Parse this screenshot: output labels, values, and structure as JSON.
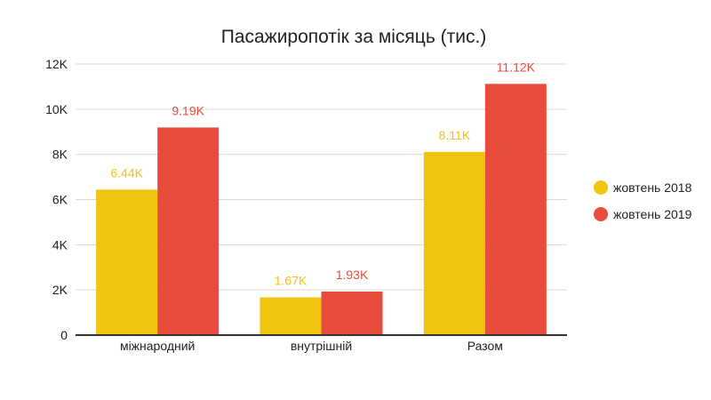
{
  "chart_data": {
    "type": "bar",
    "title": "Пасажиропотік за місяць (тис.)",
    "xlabel": "",
    "ylabel": "",
    "ylim": [
      0,
      12000
    ],
    "yticks": [
      0,
      2000,
      4000,
      6000,
      8000,
      10000,
      12000
    ],
    "ytick_labels": [
      "0",
      "2K",
      "4K",
      "6K",
      "8K",
      "10K",
      "12K"
    ],
    "categories": [
      "міжнародний",
      "внутрішній",
      "Разом"
    ],
    "series": [
      {
        "name": "жовтень 2018",
        "color": "#f1c40f",
        "values": [
          6440,
          1670,
          8110
        ],
        "labels": [
          "6.44K",
          "1.67K",
          "8.11K"
        ]
      },
      {
        "name": "жовтень 2019",
        "color": "#e74c3c",
        "values": [
          9190,
          1930,
          11120
        ],
        "labels": [
          "9.19K",
          "1.93K",
          "11.12K"
        ]
      }
    ],
    "grid": true,
    "legend_position": "right"
  }
}
